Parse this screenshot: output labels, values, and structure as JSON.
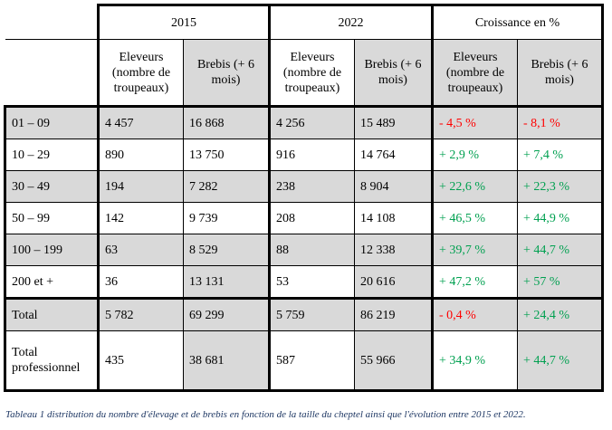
{
  "header": {
    "year_2015": "2015",
    "year_2022": "2022",
    "growth": "Croissance en %",
    "eleveurs": "Eleveurs (nombre de troupeaux)",
    "brebis": "Brebis (+ 6 mois)"
  },
  "rows": [
    {
      "label": "01 – 09",
      "e2015": "4 457",
      "b2015": "16 868",
      "e2022": "4 256",
      "b2022": "15 489",
      "ge": "- 4,5 %",
      "gb": "- 8,1 %"
    },
    {
      "label": "10 – 29",
      "e2015": "890",
      "b2015": "13 750",
      "e2022": "916",
      "b2022": "14 764",
      "ge": "+ 2,9 %",
      "gb": "+ 7,4 %"
    },
    {
      "label": "30 – 49",
      "e2015": "194",
      "b2015": "7 282",
      "e2022": "238",
      "b2022": "8 904",
      "ge": "+ 22,6 %",
      "gb": "+ 22,3 %"
    },
    {
      "label": "50 – 99",
      "e2015": "142",
      "b2015": "9 739",
      "e2022": "208",
      "b2022": "14 108",
      "ge": "+ 46,5 %",
      "gb": "+ 44,9 %"
    },
    {
      "label": "100 – 199",
      "e2015": "63",
      "b2015": "8 529",
      "e2022": "88",
      "b2022": "12 338",
      "ge": "+ 39,7 %",
      "gb": "+ 44,7 %"
    },
    {
      "label": "200 et +",
      "e2015": "36",
      "b2015": "13 131",
      "e2022": "53",
      "b2022": "20 616",
      "ge": "+ 47,2 %",
      "gb": "+ 57 %"
    }
  ],
  "total": {
    "label": "Total",
    "e2015": "5 782",
    "b2015": "69 299",
    "e2022": "5 759",
    "b2022": "86 219",
    "ge": "- 0,4 %",
    "gb": "+ 24,4 %"
  },
  "total_pro": {
    "label": "Total professionnel",
    "e2015": "435",
    "b2015": "38 681",
    "e2022": "587",
    "b2022": "55 966",
    "ge": "+ 34,9 %",
    "gb": "+ 44,7 %"
  },
  "caption": "Tableau 1 distribution du nombre d'élevage et de brebis en fonction de la taille du cheptel ainsi que l'évolution entre 2015 et 2022.",
  "colors": {
    "negative": "#ff0000",
    "positive": "#00a050",
    "shade": "#d9d9d9",
    "caption": "#1f3864"
  }
}
